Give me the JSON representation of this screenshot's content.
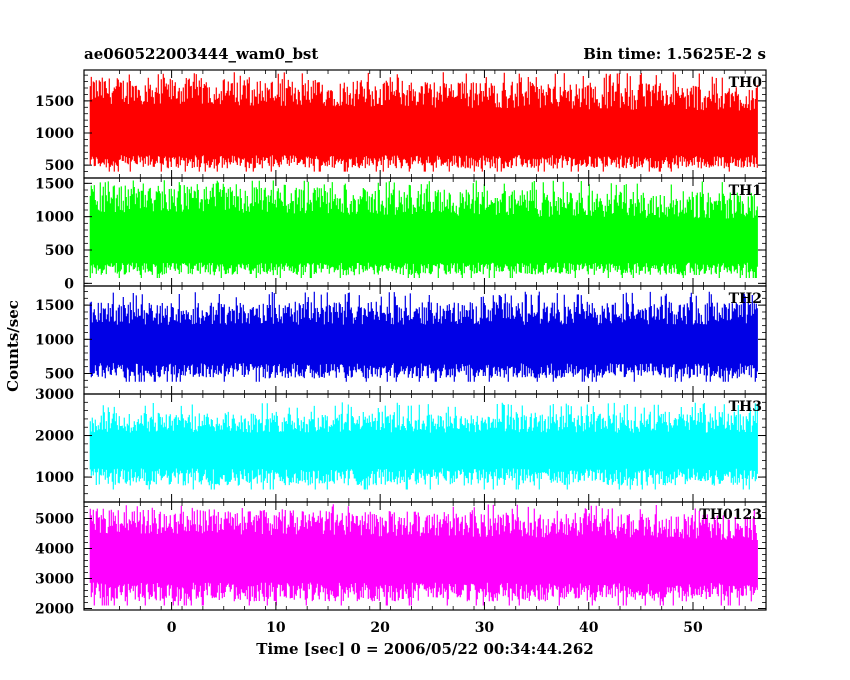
{
  "header": {
    "title": "ae060522003444_wam0_bst",
    "bin_time": "Bin time: 1.5625E-2 s"
  },
  "chart_data": {
    "type": "line",
    "title": "ae060522003444_wam0_bst",
    "xlabel": "Time [sec] 0 = 2006/05/22 00:34:44.262",
    "ylabel": "Counts/sec",
    "xlim": [
      -8.4,
      57
    ],
    "x_ticks": [
      0,
      10,
      20,
      30,
      40,
      50
    ],
    "data_x_range": [
      -7.8,
      56.2
    ],
    "grid": false,
    "panels": [
      {
        "name": "TH0",
        "color": "#ff0000",
        "ylim": [
          300,
          1980
        ],
        "yticks": [
          500,
          1000,
          1500
        ],
        "approx_signal": {
          "baseline": 700,
          "fluctuation_max": 1950,
          "fluctuation_min": 400,
          "trend": "slightly elevated near start"
        }
      },
      {
        "name": "TH1",
        "color": "#00ff00",
        "ylim": [
          -40,
          1580
        ],
        "yticks": [
          0,
          500,
          1000,
          1500
        ],
        "approx_signal": {
          "baseline": 350,
          "fluctuation_max": 1550,
          "fluctuation_min": 80,
          "trend": "slightly elevated near start"
        }
      },
      {
        "name": "TH2",
        "color": "#0000e6",
        "ylim": [
          200,
          1780
        ],
        "yticks": [
          500,
          1000,
          1500
        ],
        "approx_signal": {
          "baseline": 700,
          "fluctuation_max": 1700,
          "fluctuation_min": 380,
          "trend": "roughly flat"
        }
      },
      {
        "name": "TH3",
        "color": "#00ffff",
        "ylim": [
          400,
          3000
        ],
        "yticks": [
          1000,
          2000,
          3000
        ],
        "approx_signal": {
          "baseline": 1300,
          "fluctuation_max": 2800,
          "fluctuation_min": 700,
          "trend": "roughly flat"
        }
      },
      {
        "name": "TH0123",
        "color": "#ff00ff",
        "ylim": [
          1950,
          5550
        ],
        "yticks": [
          2000,
          3000,
          4000,
          5000
        ],
        "approx_signal": {
          "baseline": 3000,
          "fluctuation_max": 5500,
          "fluctuation_min": 2100,
          "trend": "slightly elevated near start"
        }
      }
    ]
  }
}
